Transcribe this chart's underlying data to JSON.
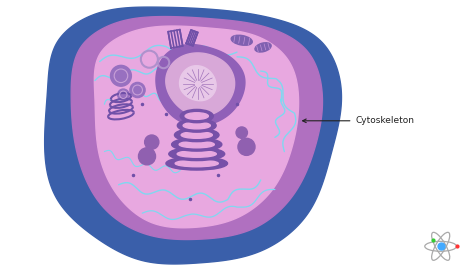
{
  "bg_color": "#ffffff",
  "blue_outer_color": "#3a5faa",
  "purple_membrane_color": "#b070c0",
  "pink_cytoplasm_color": "#e8a8e0",
  "nucleus_ring_color": "#9060b8",
  "nucleus_inner_color": "#d8a8d8",
  "nucleolus_color": "#e8c8e8",
  "golgi_color": "#7750a8",
  "organelle_color": "#8860b0",
  "cytosk_color": "#80d8f0",
  "annotation_text": "Cytoskeleton",
  "annotation_color": "#222222",
  "figsize": [
    4.74,
    2.7
  ],
  "dpi": 100
}
